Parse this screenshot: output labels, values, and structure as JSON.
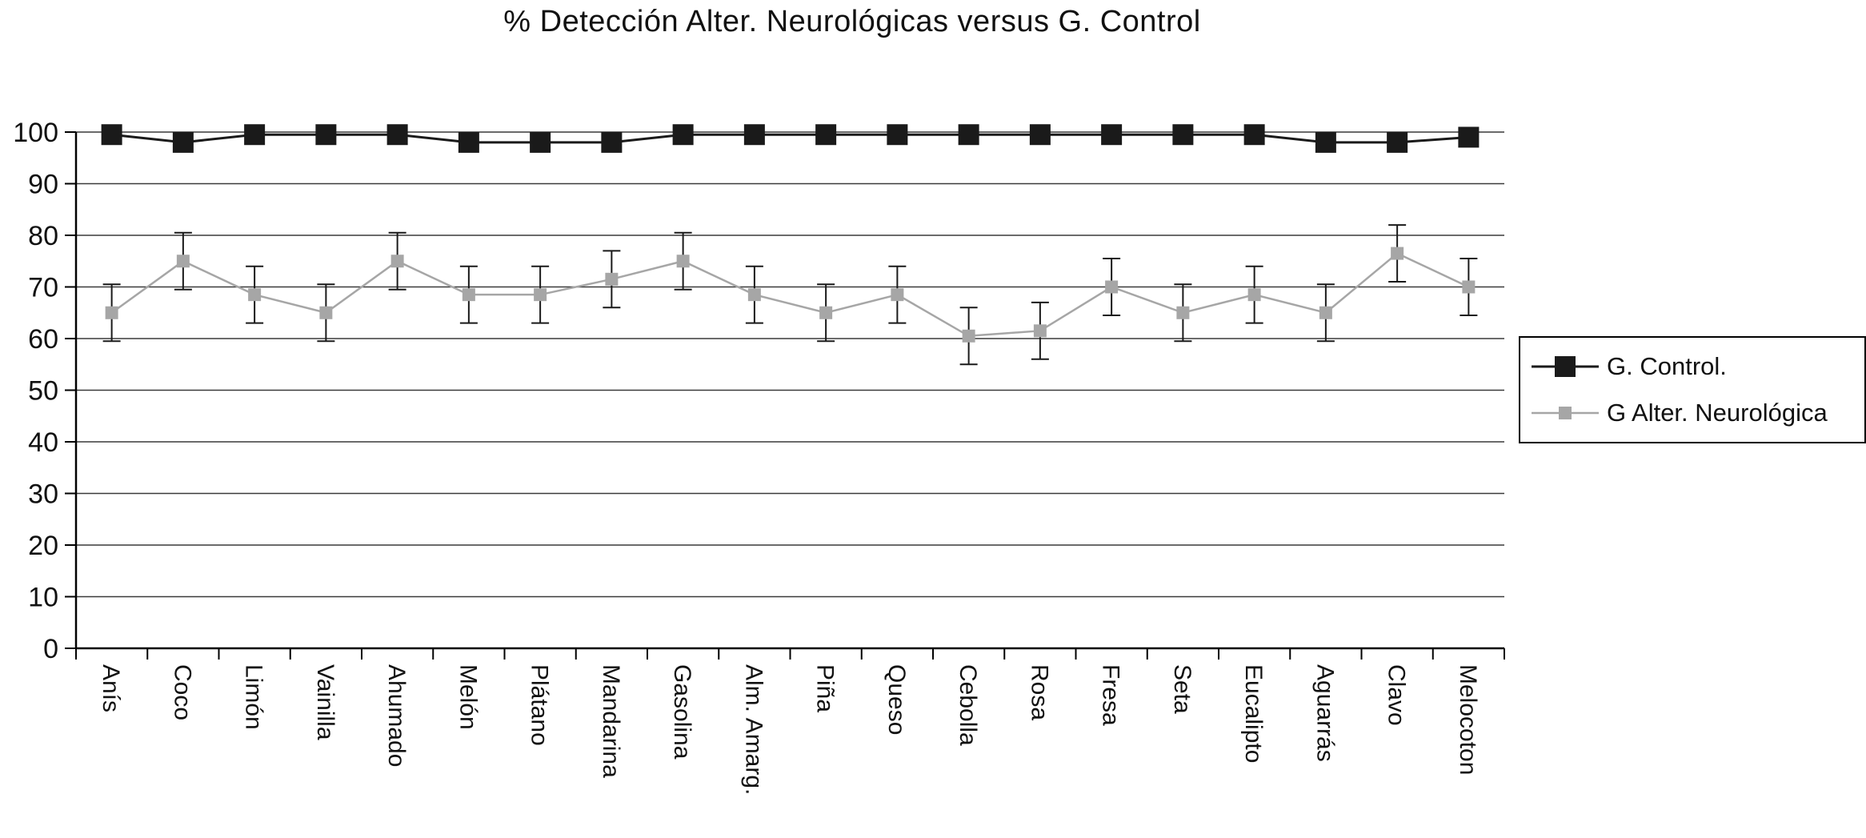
{
  "title": "% Detección Alter. Neurológicas versus G. Control",
  "chart_data": {
    "type": "line",
    "title": "% Detección Alter. Neurológicas versus G. Control",
    "categories": [
      "Anís",
      "Coco",
      "Limón",
      "Vainilla",
      "Ahumado",
      "Melón",
      "Plátano",
      "Mandarina",
      "Gasolina",
      "Alm. Amarg.",
      "Piña",
      "Queso",
      "Cebolla",
      "Rosa",
      "Fresa",
      "Seta",
      "Eucalipto",
      "Aguarrás",
      "Clavo",
      "Melocoton"
    ],
    "series": [
      {
        "name": "G. Control.",
        "color": "#1a1a1a",
        "marker": "square",
        "marker_size": 26,
        "line_width": 3,
        "values": [
          99.5,
          98,
          99.5,
          99.5,
          99.5,
          98,
          98,
          98,
          99.5,
          99.5,
          99.5,
          99.5,
          99.5,
          99.5,
          99.5,
          99.5,
          99.5,
          98,
          98,
          99
        ]
      },
      {
        "name": "G Alter. Neurológica",
        "color": "#a6a6a6",
        "marker": "square",
        "marker_size": 16,
        "line_width": 2.5,
        "values": [
          65,
          75,
          68.5,
          65,
          75,
          68.5,
          68.5,
          71.5,
          75,
          68.5,
          65,
          68.5,
          60.5,
          61.5,
          70,
          65,
          68.5,
          65,
          76.5,
          70
        ],
        "error": 5.5
      }
    ],
    "xlabel": "",
    "ylabel": "",
    "ylim": [
      0,
      100
    ],
    "yticks": [
      0,
      10,
      20,
      30,
      40,
      50,
      60,
      70,
      80,
      90,
      100
    ],
    "grid": "horizontal",
    "legend_position": "right",
    "colors": {
      "grid": "#3a3a3a",
      "axis": "#000000",
      "error_bar": "#1a1a1a",
      "text": "#111111",
      "background": "#ffffff"
    }
  }
}
